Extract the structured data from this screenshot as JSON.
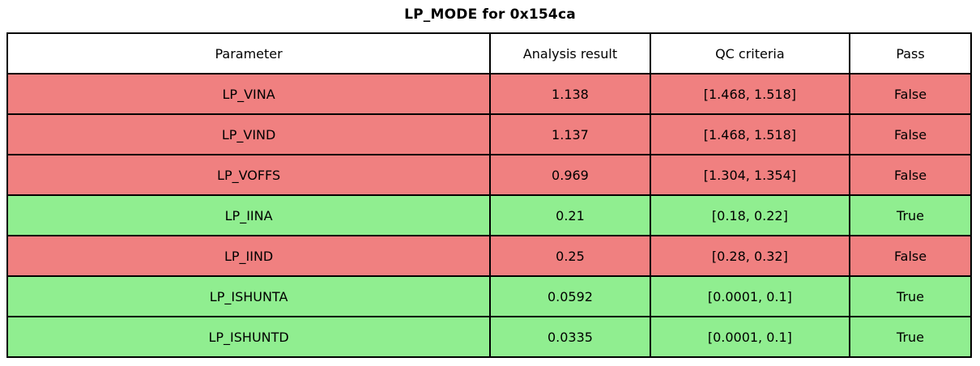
{
  "title": "LP_MODE for 0x154ca",
  "colors": {
    "pass_row": "#90EE90",
    "fail_row": "#F08080",
    "border": "#000000",
    "header_bg": "#ffffff",
    "text": "#000000"
  },
  "chart_data": {
    "type": "table",
    "title": "LP_MODE for 0x154ca",
    "columns": [
      "Parameter",
      "Analysis result",
      "QC criteria",
      "Pass"
    ],
    "rows": [
      {
        "parameter": "LP_VINA",
        "result": "1.138",
        "criteria": "[1.468, 1.518]",
        "pass": "False"
      },
      {
        "parameter": "LP_VIND",
        "result": "1.137",
        "criteria": "[1.468, 1.518]",
        "pass": "False"
      },
      {
        "parameter": "LP_VOFFS",
        "result": "0.969",
        "criteria": "[1.304, 1.354]",
        "pass": "False"
      },
      {
        "parameter": "LP_IINA",
        "result": "0.21",
        "criteria": "[0.18, 0.22]",
        "pass": "True"
      },
      {
        "parameter": "LP_IIND",
        "result": "0.25",
        "criteria": "[0.28, 0.32]",
        "pass": "False"
      },
      {
        "parameter": "LP_ISHUNTA",
        "result": "0.0592",
        "criteria": "[0.0001, 0.1]",
        "pass": "True"
      },
      {
        "parameter": "LP_ISHUNTD",
        "result": "0.0335",
        "criteria": "[0.0001, 0.1]",
        "pass": "True"
      }
    ]
  }
}
